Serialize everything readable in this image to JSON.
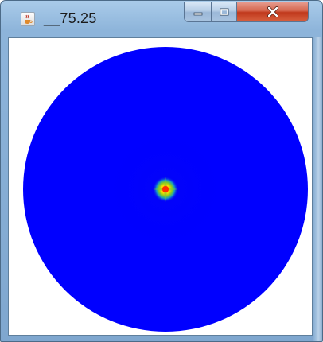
{
  "window": {
    "title": "__75.25",
    "app_icon": "java-cup-icon",
    "buttons": {
      "minimize": "minimize-icon",
      "maximize": "maximize-icon",
      "close": "close-icon"
    }
  },
  "visualization": {
    "shape": "disc",
    "background_color": "#ffffff",
    "disc_color": "#0000ff",
    "center_colors": [
      "#ff3000",
      "#ffd400",
      "#8fd020",
      "#1aa0c8",
      "#0000ff"
    ]
  }
}
